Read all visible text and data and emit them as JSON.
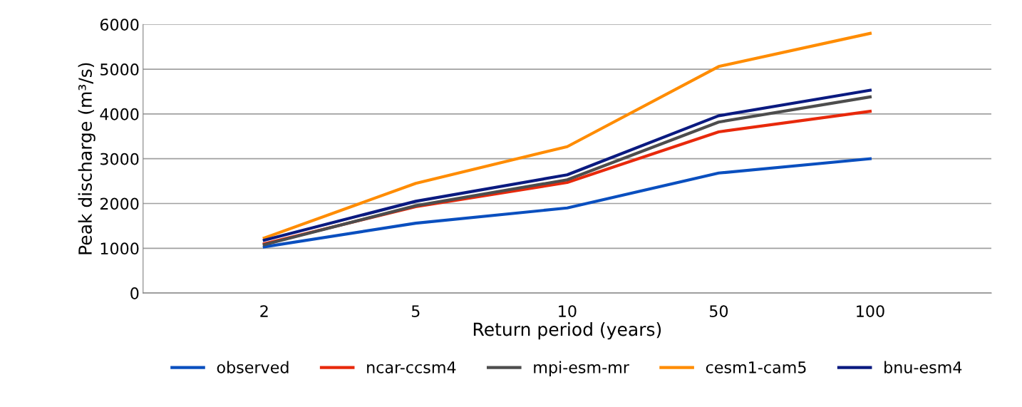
{
  "chart_data": {
    "type": "line",
    "xlabel": "Return period (years)",
    "ylabel": "Peak discharge (m³/s)",
    "categories": [
      "2",
      "5",
      "10",
      "50",
      "100"
    ],
    "ylim": [
      0,
      6000
    ],
    "yticks": [
      0,
      1000,
      2000,
      3000,
      4000,
      5000,
      6000
    ],
    "grid": "y",
    "legend": "bottom",
    "marker": "none",
    "line_style": "solid",
    "series": [
      {
        "name": "observed",
        "color": "#0a4fbf",
        "values": [
          1030,
          1560,
          1900,
          2680,
          3000
        ]
      },
      {
        "name": "ncar-ccsm4",
        "color": "#e8290b",
        "values": [
          1100,
          1930,
          2470,
          3600,
          4060
        ]
      },
      {
        "name": "mpi-esm-mr",
        "color": "#4d4d4d",
        "values": [
          1080,
          1950,
          2530,
          3820,
          4380
        ]
      },
      {
        "name": "cesm1-cam5",
        "color": "#ff8c00",
        "values": [
          1230,
          2450,
          3270,
          5060,
          5800
        ]
      },
      {
        "name": "bnu-esm4",
        "color": "#0a1a80",
        "values": [
          1180,
          2050,
          2640,
          3960,
          4530
        ]
      }
    ]
  }
}
